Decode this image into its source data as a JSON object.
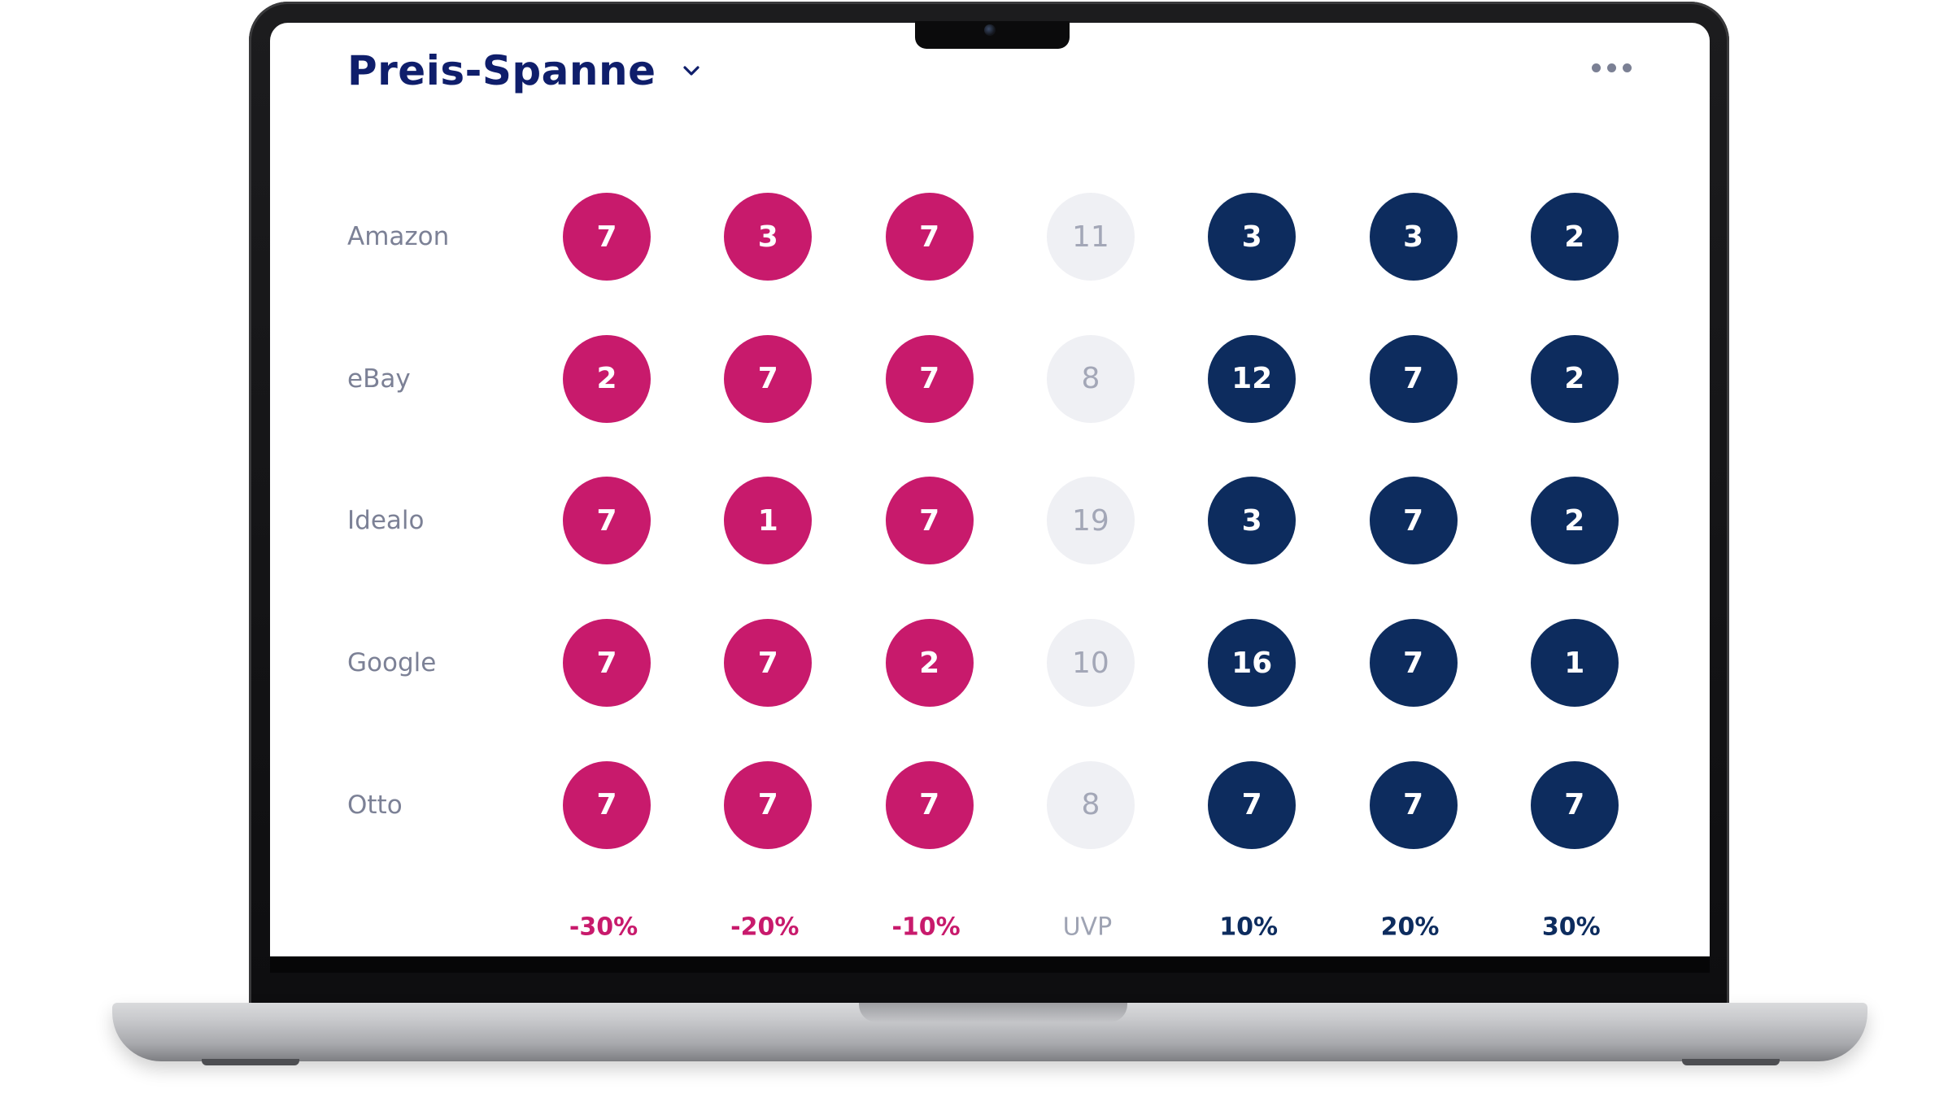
{
  "header": {
    "title": "Preis-Spanne"
  },
  "icons": {
    "dropdown": "chevron-down-icon",
    "menu": "more-horizontal-icon"
  },
  "colors": {
    "below_uvp": "#c81a6c",
    "uvp": "#eff0f4",
    "above_uvp": "#0d2c5e",
    "title": "#0f1e6b"
  },
  "chart_data": {
    "type": "table",
    "title": "Preis-Spanne",
    "columns": [
      "-30%",
      "-20%",
      "-10%",
      "UVP",
      "10%",
      "20%",
      "30%"
    ],
    "column_groups": [
      "neg",
      "neg",
      "neg",
      "mid",
      "pos",
      "pos",
      "pos"
    ],
    "rows": [
      {
        "label": "Amazon",
        "values": [
          7,
          3,
          7,
          11,
          3,
          3,
          2
        ]
      },
      {
        "label": "eBay",
        "values": [
          2,
          7,
          7,
          8,
          12,
          7,
          2
        ]
      },
      {
        "label": "Idealo",
        "values": [
          7,
          1,
          7,
          19,
          3,
          7,
          2
        ]
      },
      {
        "label": "Google",
        "values": [
          7,
          7,
          2,
          10,
          16,
          7,
          1
        ]
      },
      {
        "label": "Otto",
        "values": [
          7,
          7,
          7,
          8,
          7,
          7,
          7
        ]
      }
    ]
  }
}
